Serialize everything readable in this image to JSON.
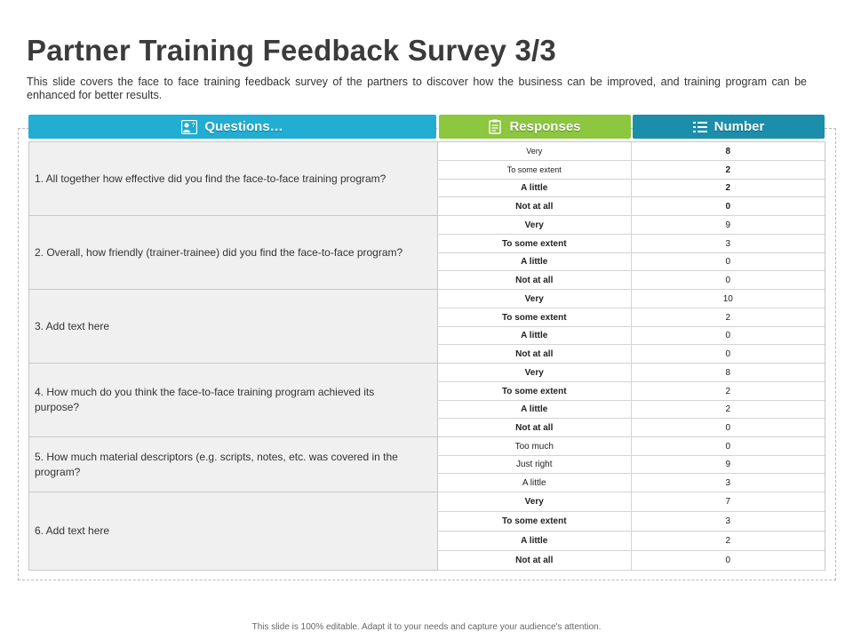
{
  "title": "Partner Training Feedback Survey 3/3",
  "subtitle": "This slide covers the face to face training feedback survey of the partners to discover how the business can be improved, and training program can be enhanced for better results.",
  "colors": {
    "questions_header": "#21aed2",
    "responses_header": "#8dc63f",
    "number_header": "#1b8eab",
    "question_bg": "#f0f0f0"
  },
  "headers": {
    "questions": {
      "label": "Questions…",
      "icon": "users-question-icon"
    },
    "responses": {
      "label": "Responses",
      "icon": "clipboard-icon"
    },
    "number": {
      "label": "Number",
      "icon": "list-icon"
    }
  },
  "questions": [
    {
      "text": "1. All together how effective  did you find the face-to-face  training program?",
      "responses": [
        {
          "label": "Very",
          "value": "8"
        },
        {
          "label": "To some extent",
          "value": "2"
        },
        {
          "label": "A little",
          "value": "2"
        },
        {
          "label": "Not at all",
          "value": "0"
        }
      ]
    },
    {
      "text": "2. Overall,  how friendly  (trainer-trainee)  did you find the face-to-face program?",
      "responses": [
        {
          "label": "Very",
          "value": "9"
        },
        {
          "label": "To some extent",
          "value": "3"
        },
        {
          "label": "A little",
          "value": "0"
        },
        {
          "label": "Not at all",
          "value": "0"
        }
      ]
    },
    {
      "text": "3. Add text here",
      "responses": [
        {
          "label": "Very",
          "value": "10"
        },
        {
          "label": "To some extent",
          "value": "2"
        },
        {
          "label": "A little",
          "value": "0"
        },
        {
          "label": "Not at all",
          "value": "0"
        }
      ]
    },
    {
      "text": "4. How much do you think the face-to-face  training program  achieved  its purpose?",
      "responses": [
        {
          "label": "Very",
          "value": "8"
        },
        {
          "label": "To some extent",
          "value": "2"
        },
        {
          "label": "A little",
          "value": "2"
        },
        {
          "label": "Not at all",
          "value": "0"
        }
      ]
    },
    {
      "text": "5. How much material descriptors  (e.g. scripts, notes, etc. was covered  in the program?",
      "responses": [
        {
          "label": "Too much",
          "value": "0"
        },
        {
          "label": "Just right",
          "value": "9"
        },
        {
          "label": "A little",
          "value": "3"
        }
      ]
    },
    {
      "text": "6. Add text here",
      "responses": [
        {
          "label": "Very",
          "value": "7"
        },
        {
          "label": "To some extent",
          "value": "3"
        },
        {
          "label": "A little",
          "value": "2"
        },
        {
          "label": "Not at all",
          "value": "0"
        }
      ]
    }
  ],
  "footer": "This slide is 100% editable. Adapt it to your needs and capture your audience's attention."
}
